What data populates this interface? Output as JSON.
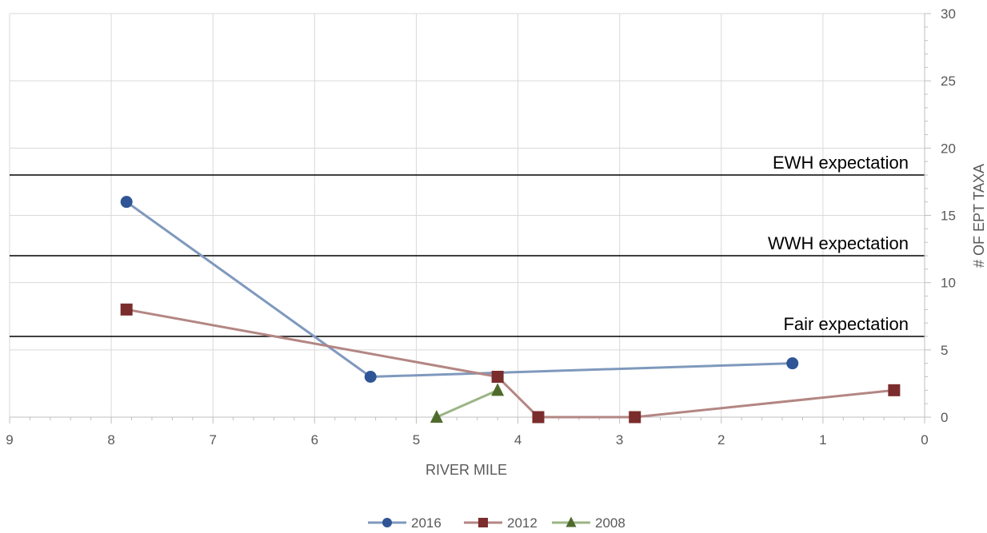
{
  "chart_data": {
    "type": "line",
    "xlabel": "RIVER MILE",
    "ylabel": "# OF EPT TAXA",
    "xlim": [
      9,
      0
    ],
    "x_reversed": true,
    "ylim": [
      0,
      30
    ],
    "x_ticks": [
      "9",
      "8",
      "7",
      "6",
      "5",
      "4",
      "3",
      "2",
      "1",
      "0"
    ],
    "y_ticks": [
      "0",
      "5",
      "10",
      "15",
      "20",
      "25",
      "30"
    ],
    "y_axis_position": "right",
    "grid": true,
    "legend_position": "bottom",
    "reference_lines": [
      {
        "label": "EWH expectation",
        "y": 18
      },
      {
        "label": "WWH expectation",
        "y": 12
      },
      {
        "label": "Fair expectation",
        "y": 6
      }
    ],
    "series": [
      {
        "name": "2016",
        "marker": "circle",
        "color": "#7f99bd",
        "marker_color": "#2f5597",
        "x": [
          7.85,
          5.45,
          1.3
        ],
        "y": [
          16,
          3,
          4
        ]
      },
      {
        "name": "2012",
        "marker": "square",
        "color": "#b38683",
        "marker_color": "#7b2c2c",
        "x": [
          7.85,
          4.2,
          3.8,
          2.85,
          0.3
        ],
        "y": [
          8,
          3,
          0,
          0,
          2
        ]
      },
      {
        "name": "2008",
        "marker": "triangle",
        "color": "#9bb585",
        "marker_color": "#4e6b2c",
        "x": [
          4.8,
          4.2
        ],
        "y": [
          0,
          2
        ]
      }
    ]
  }
}
